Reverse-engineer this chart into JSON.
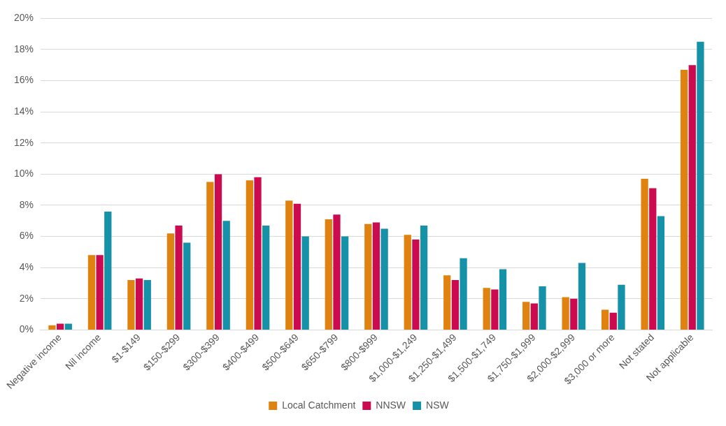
{
  "chart_data": {
    "type": "bar",
    "categories": [
      "Negative income",
      "Nil income",
      "$1-$149",
      "$150-$299",
      "$300-$399",
      "$400-$499",
      "$500-$649",
      "$650-$799",
      "$800-$999",
      "$1,000-$1,249",
      "$1,250-$1,499",
      "$1,500-$1,749",
      "$1,750-$1,999",
      "$2,000-$2,999",
      "$3,000 or more",
      "Not stated",
      "Not applicable"
    ],
    "series": [
      {
        "name": "Local Catchment",
        "color": "#e0820f",
        "values": [
          0.3,
          4.8,
          3.2,
          6.2,
          9.5,
          9.6,
          8.3,
          7.1,
          6.8,
          6.1,
          3.5,
          2.7,
          1.8,
          2.1,
          1.3,
          9.7,
          16.7
        ]
      },
      {
        "name": "NNSW",
        "color": "#cc0a50",
        "values": [
          0.4,
          4.8,
          3.3,
          6.7,
          10.0,
          9.8,
          8.1,
          7.4,
          6.9,
          5.8,
          3.2,
          2.6,
          1.7,
          2.0,
          1.1,
          9.1,
          17.0
        ]
      },
      {
        "name": "NSW",
        "color": "#1592a8",
        "values": [
          0.4,
          7.6,
          3.2,
          5.6,
          7.0,
          6.7,
          6.0,
          6.0,
          6.5,
          6.7,
          4.6,
          3.9,
          2.8,
          4.3,
          2.9,
          7.3,
          18.5
        ]
      }
    ],
    "ylim": [
      0,
      20
    ],
    "yticks": [
      {
        "value": 0,
        "label": "0%"
      },
      {
        "value": 2,
        "label": "2%"
      },
      {
        "value": 4,
        "label": "4%"
      },
      {
        "value": 6,
        "label": "6%"
      },
      {
        "value": 8,
        "label": "8%"
      },
      {
        "value": 10,
        "label": "10%"
      },
      {
        "value": 12,
        "label": "12%"
      },
      {
        "value": 14,
        "label": "14%"
      },
      {
        "value": 16,
        "label": "16%"
      },
      {
        "value": 18,
        "label": "18%"
      },
      {
        "value": 20,
        "label": "20%"
      }
    ],
    "grid": "y",
    "legend": "bottom"
  }
}
